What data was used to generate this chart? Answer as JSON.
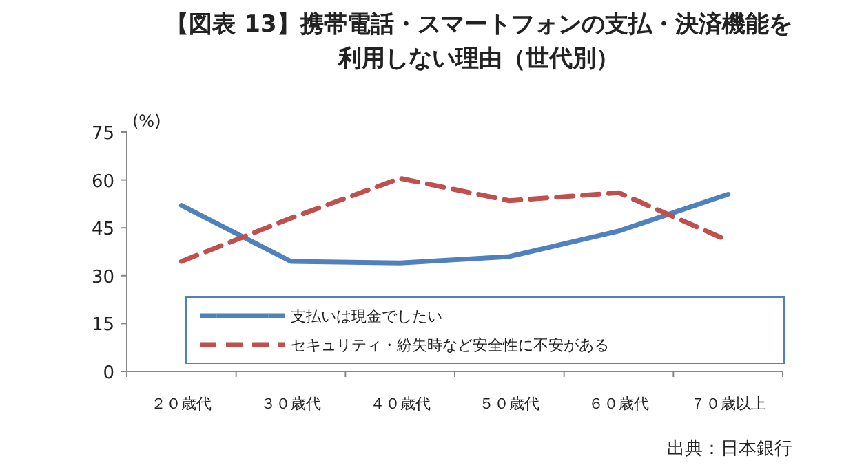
{
  "chart_data": {
    "type": "line",
    "title": "【図表 13】携帯電話・スマートフォンの支払・決済機能を利用しない理由（世代別）",
    "ylabel": "(%)",
    "categories": [
      "２０歳代",
      "３０歳代",
      "４０歳代",
      "５０歳代",
      "６０歳代",
      "７０歳以上"
    ],
    "series": [
      {
        "name": "支払いは現金でしたい",
        "color": "#4f81bd",
        "line_style": "solid",
        "values": [
          52,
          34.5,
          34,
          36,
          44,
          55.5
        ]
      },
      {
        "name": "セキュリティ・紛失時など安全性に不安がある",
        "color": "#c0504d",
        "line_style": "dashed",
        "values": [
          34.5,
          48,
          60.5,
          53.5,
          56,
          41
        ]
      }
    ],
    "ylim": [
      0,
      75
    ],
    "yticks": [
      0,
      15,
      30,
      45,
      60,
      75
    ],
    "legend": "bottom",
    "annotations": [
      "出典：日本銀行"
    ]
  }
}
